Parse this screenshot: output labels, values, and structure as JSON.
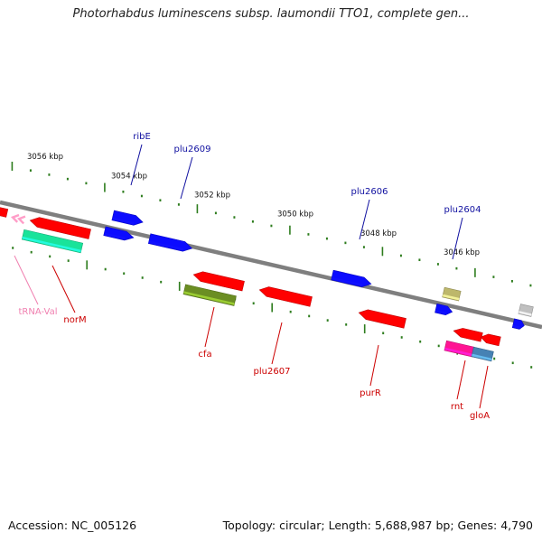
{
  "title": "Photorhabdus luminescens subsp. laumondii TTO1, complete gen...",
  "footer": {
    "accession": "Accession: NC_005126",
    "summary": "Topology: circular; Length: 5,688,987 bp; Genes: 4,790"
  },
  "colors": {
    "backbone": "#7f7f7f",
    "tick": "#2e7d1e",
    "forward_label": "#1010a0",
    "reverse_label": "#cc0000",
    "trna_label": "#f080b0"
  },
  "scale": {
    "unit": "kbp",
    "major_ticks_kbp": [
      3056,
      3054,
      3052,
      3050,
      3048,
      3046
    ]
  },
  "features": [
    {
      "id": "f1",
      "name": "",
      "strand": "reverse",
      "color": "#ff0000"
    },
    {
      "id": "f2",
      "name": "",
      "strand": "reverse",
      "color": "#ff9ec8"
    },
    {
      "id": "norM",
      "name": "norM",
      "strand": "reverse",
      "color": "#ff0000"
    },
    {
      "id": "tRNA-Val",
      "name": "tRNA-Val",
      "strand": "reverse",
      "color": "#19e39a"
    },
    {
      "id": "ribE",
      "name": "ribE",
      "strand": "forward",
      "color": "#0b0bff"
    },
    {
      "id": "f6",
      "name": "",
      "strand": "forward",
      "color": "#0b0bff"
    },
    {
      "id": "plu2609",
      "name": "plu2609",
      "strand": "forward",
      "color": "#0b0bff"
    },
    {
      "id": "cfa",
      "name": "cfa",
      "strand": "reverse",
      "color": "#ff0000"
    },
    {
      "id": "f9",
      "name": "",
      "strand": "reverse",
      "color": "#6b8e23"
    },
    {
      "id": "plu2607",
      "name": "plu2607",
      "strand": "reverse",
      "color": "#ff0000"
    },
    {
      "id": "plu2606",
      "name": "plu2606",
      "strand": "forward",
      "color": "#0b0bff"
    },
    {
      "id": "purR",
      "name": "purR",
      "strand": "reverse",
      "color": "#ff0000"
    },
    {
      "id": "plu2604",
      "name": "plu2604",
      "strand": "forward",
      "color": "#bdb76b"
    },
    {
      "id": "f14",
      "name": "",
      "strand": "forward",
      "color": "#0b0bff"
    },
    {
      "id": "rnt",
      "name": "rnt",
      "strand": "reverse",
      "color": "#ff0000"
    },
    {
      "id": "f16",
      "name": "",
      "strand": "reverse",
      "color": "#ff0000"
    },
    {
      "id": "f17",
      "name": "",
      "strand": "reverse",
      "color": "#ff1493"
    },
    {
      "id": "gloA",
      "name": "gloA",
      "strand": "reverse",
      "color": "#4682b4"
    },
    {
      "id": "f19",
      "name": "",
      "strand": "forward",
      "color": "#c0c0c0"
    },
    {
      "id": "f20",
      "name": "",
      "strand": "forward",
      "color": "#0b0bff"
    }
  ]
}
